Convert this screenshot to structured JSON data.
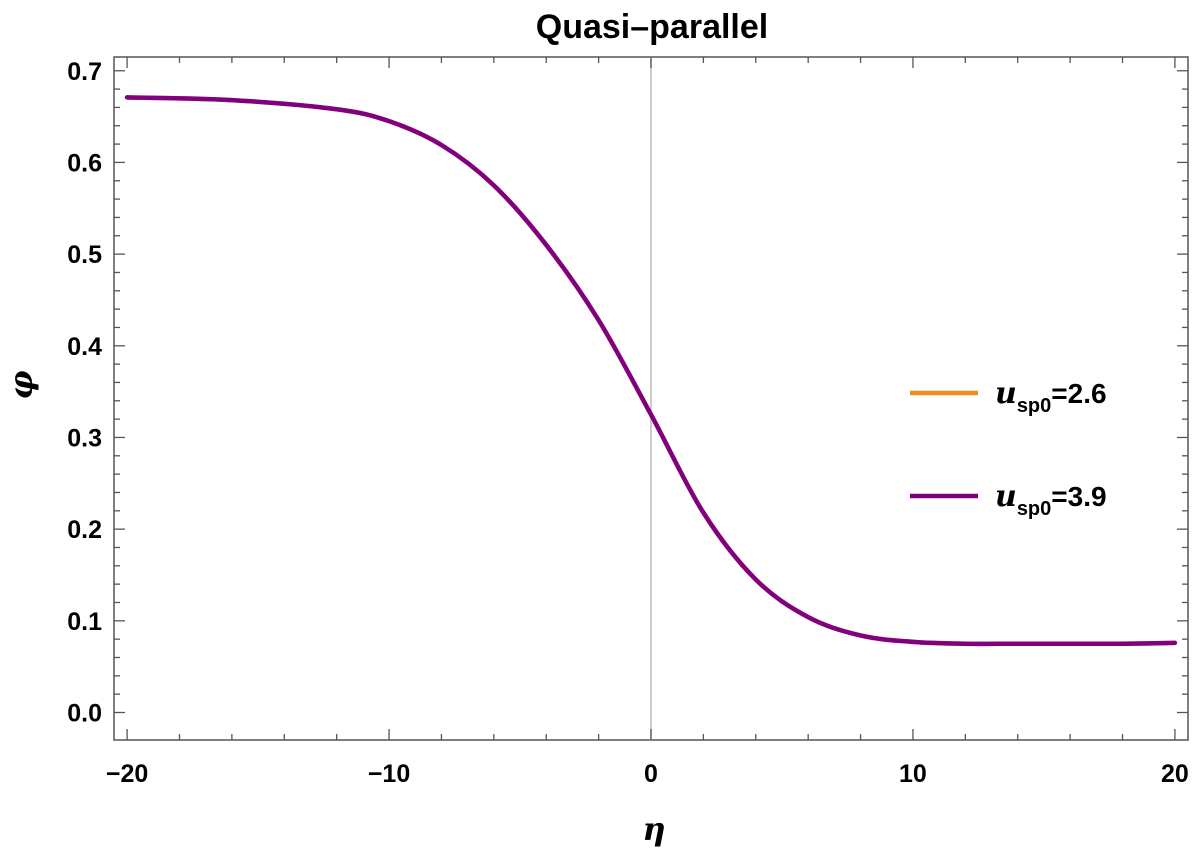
{
  "chart_data": {
    "type": "line",
    "title": "Quasi–parallel",
    "xlabel": "η",
    "ylabel": "φ",
    "xlim": [
      -20.5,
      20.5
    ],
    "ylim": [
      -0.03,
      0.715
    ],
    "xticks": [
      -20,
      -10,
      0,
      10,
      20
    ],
    "xtick_labels": [
      "−20",
      "−10",
      "0",
      "10",
      "20"
    ],
    "yticks": [
      0.0,
      0.1,
      0.2,
      0.3,
      0.4,
      0.5,
      0.6,
      0.7
    ],
    "ytick_labels": [
      "0.0",
      "0.1",
      "0.2",
      "0.3",
      "0.4",
      "0.5",
      "0.6",
      "0.7"
    ],
    "grid": false,
    "vertical_reference_line_x": 0,
    "legend_position": "right",
    "series": [
      {
        "name": "u_sp0=2.6",
        "legend_var": "u",
        "legend_sub": "sp0",
        "legend_value": "=2.6",
        "color": "#f28c1e",
        "x": [
          -20,
          -16,
          -12,
          -10,
          -8,
          -6,
          -4,
          -2,
          0,
          2,
          4,
          6,
          8,
          10,
          12,
          14,
          16,
          18,
          20
        ],
        "y": [
          0.671,
          0.668,
          0.658,
          0.645,
          0.619,
          0.575,
          0.51,
          0.428,
          0.325,
          0.218,
          0.145,
          0.104,
          0.084,
          0.077,
          0.075,
          0.075,
          0.075,
          0.075,
          0.076
        ]
      },
      {
        "name": "u_sp0=3.9",
        "legend_var": "u",
        "legend_sub": "sp0",
        "legend_value": "=3.9",
        "color": "#800080",
        "x": [
          -20,
          -16,
          -12,
          -10,
          -8,
          -6,
          -4,
          -2,
          0,
          2,
          4,
          6,
          8,
          10,
          12,
          14,
          16,
          18,
          20
        ],
        "y": [
          0.671,
          0.668,
          0.658,
          0.645,
          0.619,
          0.575,
          0.51,
          0.428,
          0.325,
          0.218,
          0.145,
          0.104,
          0.084,
          0.077,
          0.075,
          0.075,
          0.075,
          0.075,
          0.076
        ]
      }
    ]
  }
}
